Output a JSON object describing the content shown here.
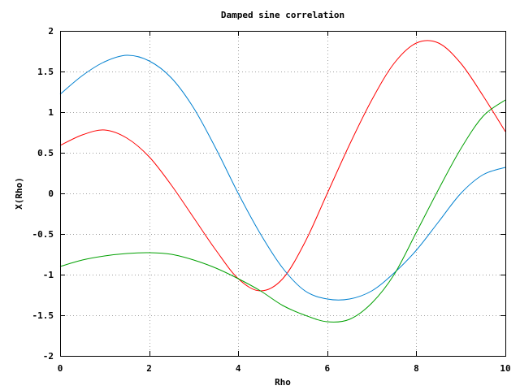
{
  "chart_data": {
    "type": "line",
    "title": "Damped sine correlation",
    "xlabel": "Rho",
    "ylabel": "X(Rho)",
    "xlim": [
      0,
      10
    ],
    "ylim": [
      -2,
      2
    ],
    "xticks": [
      0,
      2,
      4,
      6,
      8,
      10
    ],
    "xtick_labels": [
      "0",
      "2",
      "4",
      "6",
      "8",
      "10"
    ],
    "yticks": [
      -2,
      -1.5,
      -1,
      -0.5,
      0,
      0.5,
      1,
      1.5,
      2
    ],
    "ytick_labels": [
      "-2",
      "-1.5",
      "-1",
      "-0.5",
      "0",
      "0.5",
      "1",
      "1.5",
      "2"
    ],
    "grid": true,
    "legend": "none",
    "series": [
      {
        "color": "#ff0000",
        "x": [
          0,
          0.5,
          1,
          1.5,
          2,
          2.5,
          3,
          3.5,
          4,
          4.5,
          5,
          5.5,
          6,
          6.5,
          7,
          7.5,
          8,
          8.5,
          9,
          9.5,
          10
        ],
        "y": [
          0.59,
          0.72,
          0.78,
          0.68,
          0.45,
          0.1,
          -0.3,
          -0.7,
          -1.05,
          -1.2,
          -1.05,
          -0.6,
          0.0,
          0.6,
          1.15,
          1.6,
          1.85,
          1.85,
          1.6,
          1.2,
          0.76
        ]
      },
      {
        "color": "#0080d0",
        "x": [
          0,
          0.5,
          1,
          1.5,
          2,
          2.5,
          3,
          3.5,
          4,
          4.5,
          5,
          5.5,
          6,
          6.5,
          7,
          7.5,
          8,
          8.5,
          9,
          9.5,
          10
        ],
        "y": [
          1.22,
          1.45,
          1.62,
          1.7,
          1.63,
          1.42,
          1.05,
          0.55,
          0.0,
          -0.5,
          -0.92,
          -1.2,
          -1.3,
          -1.3,
          -1.2,
          -0.98,
          -0.7,
          -0.35,
          0.0,
          0.23,
          0.32
        ]
      },
      {
        "color": "#00a000",
        "x": [
          0,
          0.5,
          1,
          1.5,
          2,
          2.5,
          3,
          3.5,
          4,
          4.5,
          5,
          5.5,
          6,
          6.5,
          7,
          7.5,
          8,
          8.5,
          9,
          9.5,
          10
        ],
        "y": [
          -0.9,
          -0.82,
          -0.77,
          -0.74,
          -0.73,
          -0.75,
          -0.82,
          -0.92,
          -1.05,
          -1.2,
          -1.38,
          -1.5,
          -1.58,
          -1.55,
          -1.35,
          -1.0,
          -0.48,
          0.05,
          0.55,
          0.95,
          1.15
        ]
      }
    ]
  }
}
